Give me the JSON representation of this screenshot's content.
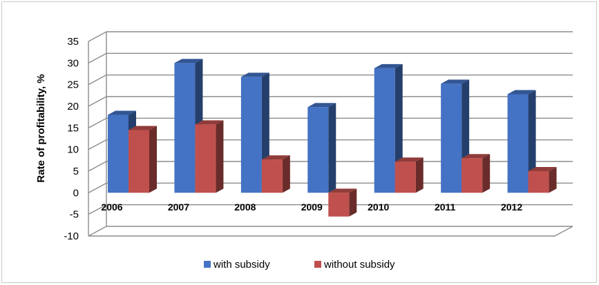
{
  "chart_data": {
    "type": "bar",
    "title": "",
    "xlabel": "",
    "ylabel": "Rate of profitability, %",
    "categories": [
      "2006",
      "2007",
      "2008",
      "2009",
      "2010",
      "2011",
      "2012"
    ],
    "series": [
      {
        "name": "with subsidy",
        "values": [
          18,
          30,
          26.8,
          19.8,
          28.8,
          25.2,
          22.8
        ],
        "color": "#4472c4"
      },
      {
        "name": "without subsidy",
        "values": [
          14.5,
          15.8,
          7.7,
          -5.5,
          7.2,
          8,
          5
        ],
        "color": "#c0504d"
      }
    ],
    "yticks": [
      -10,
      -5,
      0,
      5,
      10,
      15,
      20,
      25,
      30,
      35
    ],
    "ylim": [
      -10,
      35
    ],
    "grid": true,
    "legend_position": "bottom",
    "style": "3d-clustered-column"
  }
}
